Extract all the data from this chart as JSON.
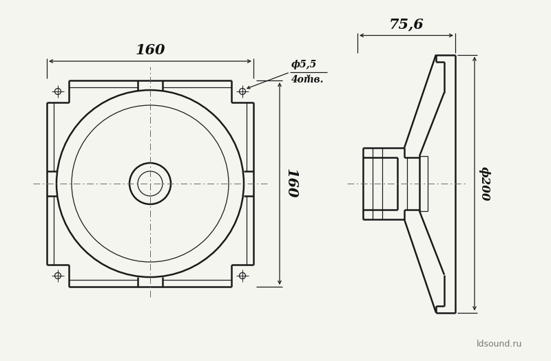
{
  "bg_color": "#f5f5f0",
  "line_color": "#1a1a1a",
  "center_line_color": "#666666",
  "text_color": "#111111",
  "figsize": [
    8.0,
    5.25
  ],
  "dpi": 100,
  "watermark": "ldsound.ru",
  "dim_160_horiz": "160",
  "dim_160_vert": "160",
  "dim_75_6": "75,6",
  "dim_phi55": "ϕ5,5",
  "dim_4otv": "4отв.",
  "dim_phi200": "ϕ200"
}
